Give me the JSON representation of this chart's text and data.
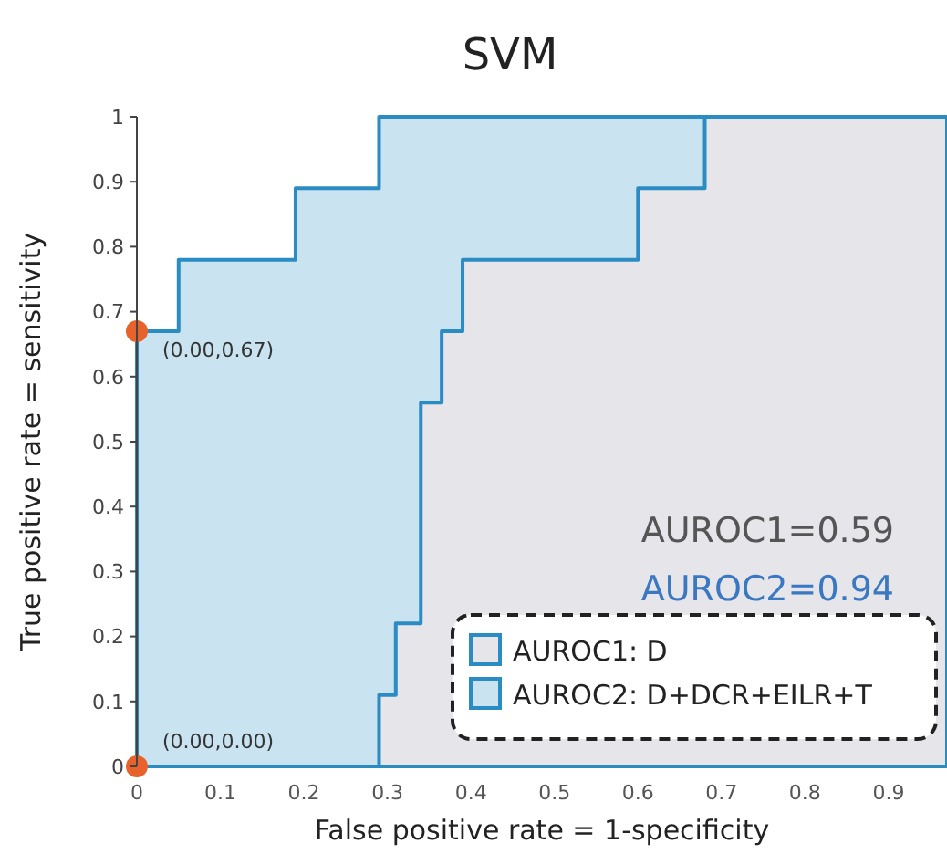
{
  "chart_data": {
    "type": "area",
    "title": "SVM",
    "xlabel": "False positive rate = 1-specificity",
    "ylabel": "True positive rate = sensitivity",
    "xlim": [
      0,
      0.97
    ],
    "xticks": [
      0,
      0.1,
      0.2,
      0.3,
      0.4,
      0.5,
      0.6,
      0.7,
      0.8,
      0.9
    ],
    "ylim": [
      0,
      1
    ],
    "yticks": [
      0,
      0.1,
      0.2,
      0.3,
      0.4,
      0.5,
      0.6,
      0.7,
      0.8,
      0.9,
      1
    ],
    "grid": false,
    "legend": "bottom right",
    "series": [
      {
        "name": "AUROC2: D+DCR+EILR+T",
        "color": "#c9e3f1",
        "x": [
          0,
          0,
          0.05,
          0.05,
          0.19,
          0.19,
          0.29,
          0.29,
          0.97
        ],
        "values": [
          0,
          0.67,
          0.67,
          0.78,
          0.78,
          0.89,
          0.89,
          1,
          1
        ]
      },
      {
        "name": "AUROC1: D",
        "color": "#e5e5ea",
        "x": [
          0.29,
          0.29,
          0.31,
          0.31,
          0.34,
          0.34,
          0.365,
          0.365,
          0.39,
          0.39,
          0.6,
          0.6,
          0.68,
          0.68,
          0.97
        ],
        "values": [
          0,
          0.11,
          0.11,
          0.22,
          0.22,
          0.56,
          0.56,
          0.67,
          0.67,
          0.78,
          0.78,
          0.89,
          0.89,
          1,
          1
        ]
      },
      {
        "type": "scatter",
        "color": "#e8622c",
        "x": [
          0,
          0
        ],
        "values": [
          0.67,
          0
        ]
      }
    ],
    "annotations": [
      {
        "text": "(0.00,0.67)",
        "x": 0,
        "y": 0.67
      },
      {
        "text": "(0.00,0.00)",
        "x": 0,
        "y": 0
      },
      "AUROC1=0.59",
      "AUROC2=0.94"
    ]
  }
}
